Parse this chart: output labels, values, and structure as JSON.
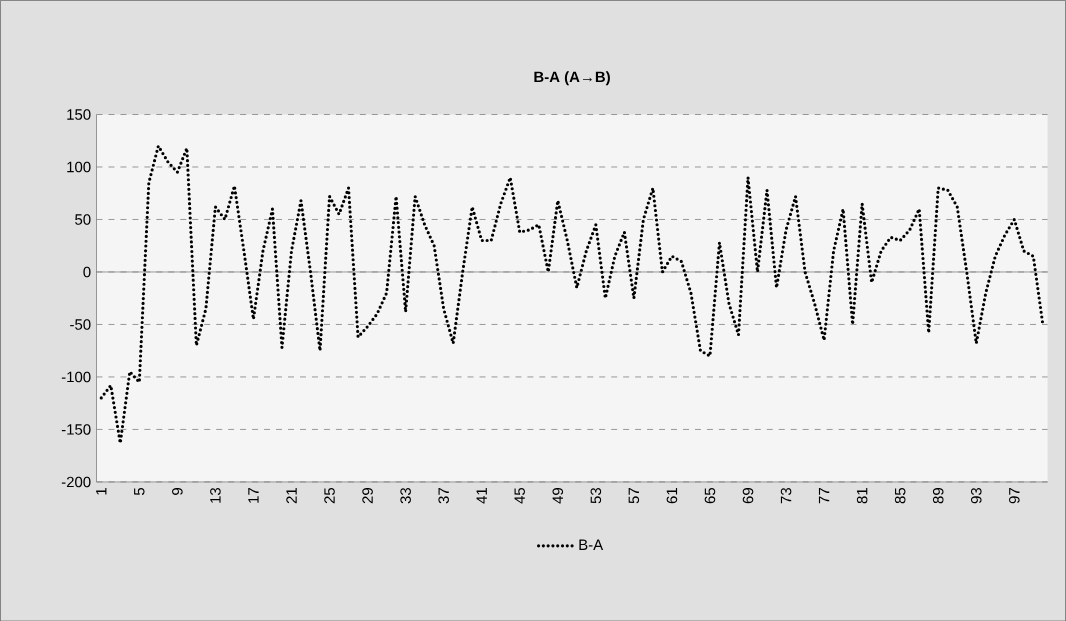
{
  "chart_data": {
    "type": "line",
    "title": "B-A (A→B)",
    "categories": [
      "1",
      null,
      null,
      null,
      "5",
      null,
      null,
      null,
      "9",
      null,
      null,
      null,
      "13",
      null,
      null,
      null,
      "17",
      null,
      null,
      null,
      "21",
      null,
      null,
      null,
      "25",
      null,
      null,
      null,
      "29",
      null,
      null,
      null,
      "33",
      null,
      null,
      null,
      "37",
      null,
      null,
      null,
      "41",
      null,
      null,
      null,
      "45",
      null,
      null,
      null,
      "49",
      null,
      null,
      null,
      "53",
      null,
      null,
      null,
      "57",
      null,
      null,
      null,
      "61",
      null,
      null,
      null,
      "65",
      null,
      null,
      null,
      "69",
      null,
      null,
      null,
      "73",
      null,
      null,
      null,
      "77",
      null,
      null,
      null,
      "81",
      null,
      null,
      null,
      "85",
      null,
      null,
      null,
      "89",
      null,
      null,
      null,
      "93",
      null,
      null,
      null,
      "97",
      null,
      null,
      null
    ],
    "series": [
      {
        "name": "B-A",
        "color": "#000000",
        "values": [
          -120,
          -108,
          -163,
          -95,
          -105,
          85,
          120,
          105,
          95,
          118,
          -70,
          -35,
          62,
          50,
          82,
          20,
          -45,
          20,
          60,
          -72,
          20,
          68,
          0,
          -75,
          72,
          55,
          80,
          -62,
          -52,
          -40,
          -20,
          72,
          -38,
          72,
          45,
          25,
          -35,
          -68,
          0,
          62,
          30,
          30,
          65,
          90,
          38,
          40,
          45,
          0,
          68,
          30,
          -15,
          20,
          45,
          -25,
          15,
          38,
          -25,
          50,
          80,
          0,
          15,
          10,
          -20,
          -75,
          -80,
          28,
          -30,
          -60,
          90,
          0,
          78,
          -15,
          40,
          72,
          0,
          -30,
          -65,
          20,
          60,
          -50,
          65,
          -10,
          20,
          33,
          30,
          40,
          60,
          -58,
          80,
          78,
          62,
          0,
          -68,
          -20,
          15,
          35,
          50,
          20,
          15,
          -50
        ]
      }
    ],
    "ylim": [
      -200,
      150
    ],
    "yticks": [
      -200,
      -150,
      -100,
      -50,
      0,
      50,
      100,
      150
    ],
    "grid": "y",
    "legend": "bottom",
    "line_style": "dotted"
  }
}
